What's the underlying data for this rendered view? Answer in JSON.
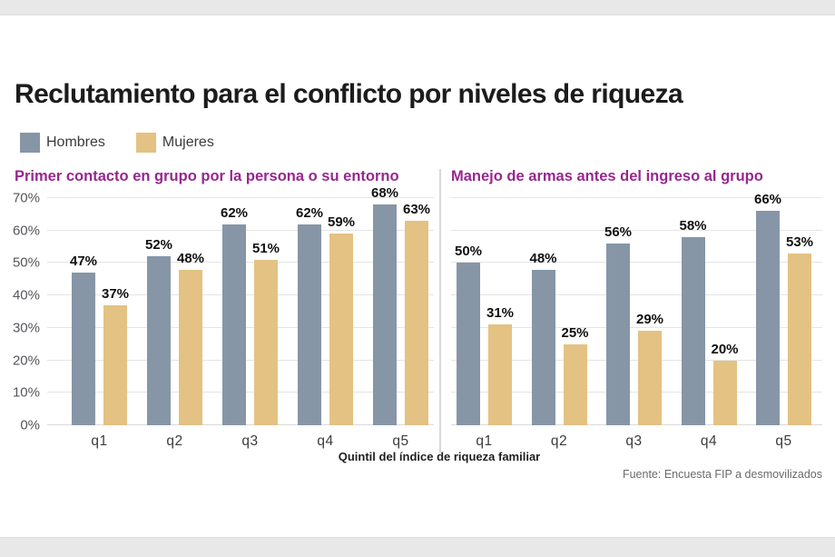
{
  "title": "Reclutamiento para el conflicto por niveles de riqueza",
  "legend": {
    "items": [
      {
        "label": "Hombres",
        "color": "#8696a7"
      },
      {
        "label": "Mujeres",
        "color": "#e3c283"
      }
    ]
  },
  "xaxis_title": "Quintil del índice de riqueza familiar",
  "source": "Fuente: Encuesta FIP a desmovilizados",
  "colors": {
    "hombres_bar": "#8696a7",
    "mujeres_bar": "#e3c283",
    "subtitle": "#97278f",
    "gridline": "#e5e5e5",
    "band": "#e8e8e8"
  },
  "chart_data": [
    {
      "type": "bar",
      "title": "Primer contacto en grupo por la persona o su entorno",
      "categories": [
        "q1",
        "q2",
        "q3",
        "q4",
        "q5"
      ],
      "series": [
        {
          "name": "Hombres",
          "values": [
            47,
            52,
            62,
            62,
            68
          ]
        },
        {
          "name": "Mujeres",
          "values": [
            37,
            48,
            51,
            59,
            63
          ]
        }
      ],
      "ylim": [
        0,
        70
      ],
      "yticks": [
        "0%",
        "10%",
        "20%",
        "30%",
        "40%",
        "50%",
        "60%",
        "70%"
      ],
      "grid": true,
      "show_y_labels": true,
      "value_label_suffix": "%",
      "legend_position": "top-left-of-figure"
    },
    {
      "type": "bar",
      "title": "Manejo de armas antes del ingreso al grupo",
      "categories": [
        "q1",
        "q2",
        "q3",
        "q4",
        "q5"
      ],
      "series": [
        {
          "name": "Hombres",
          "values": [
            50,
            48,
            56,
            58,
            66
          ]
        },
        {
          "name": "Mujeres",
          "values": [
            31,
            25,
            29,
            20,
            53
          ]
        }
      ],
      "ylim": [
        0,
        70
      ],
      "yticks": [
        "0%",
        "10%",
        "20%",
        "30%",
        "40%",
        "50%",
        "60%",
        "70%"
      ],
      "grid": true,
      "show_y_labels": false,
      "value_label_suffix": "%"
    }
  ]
}
